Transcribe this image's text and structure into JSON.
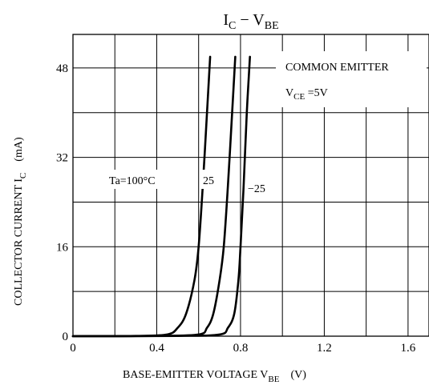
{
  "chart_data": {
    "type": "line",
    "title": {
      "main": "I",
      "main_sub": "C",
      "sep": " − ",
      "tail": "V",
      "tail_sub": "BE"
    },
    "xlabel": {
      "main": "BASE-EMITTER VOLTAGE  V",
      "sub": "BE",
      "unit": "(V)"
    },
    "ylabel": {
      "main": "COLLECTOR CURRENT  I",
      "sub": "C",
      "unit": "(mA)"
    },
    "xlim": [
      0,
      1.7
    ],
    "ylim": [
      0,
      54
    ],
    "x_ticks": [
      0,
      0.4,
      0.8,
      1.2,
      1.6
    ],
    "x_tick_labels": [
      "0",
      "0.4",
      "0.8",
      "1.2",
      "1.6"
    ],
    "y_ticks": [
      0,
      16,
      32,
      48
    ],
    "y_tick_labels": [
      "0",
      "16",
      "32",
      "48"
    ],
    "grid": true,
    "annotations": {
      "condition_line1": "COMMON EMITTER",
      "condition_line2_main": "V",
      "condition_line2_sub": "CE",
      "condition_line2_tail": " =5V"
    },
    "series": [
      {
        "name": "Ta=100°C",
        "x": [
          0,
          0.3,
          0.45,
          0.5,
          0.54,
          0.58,
          0.6,
          0.62,
          0.64,
          0.655
        ],
        "y": [
          0,
          0.05,
          0.3,
          1.5,
          4,
          10,
          16,
          27,
          40,
          50
        ]
      },
      {
        "name": "25",
        "x": [
          0,
          0.4,
          0.6,
          0.64,
          0.67,
          0.7,
          0.72,
          0.74,
          0.76,
          0.775
        ],
        "y": [
          0,
          0.05,
          0.3,
          1.5,
          4,
          10,
          16,
          27,
          40,
          50
        ]
      },
      {
        "name": "−25",
        "x": [
          0,
          0.5,
          0.7,
          0.74,
          0.77,
          0.79,
          0.8,
          0.815,
          0.83,
          0.845
        ],
        "y": [
          0,
          0.05,
          0.3,
          1.5,
          4,
          10,
          16,
          27,
          40,
          50
        ]
      }
    ]
  }
}
